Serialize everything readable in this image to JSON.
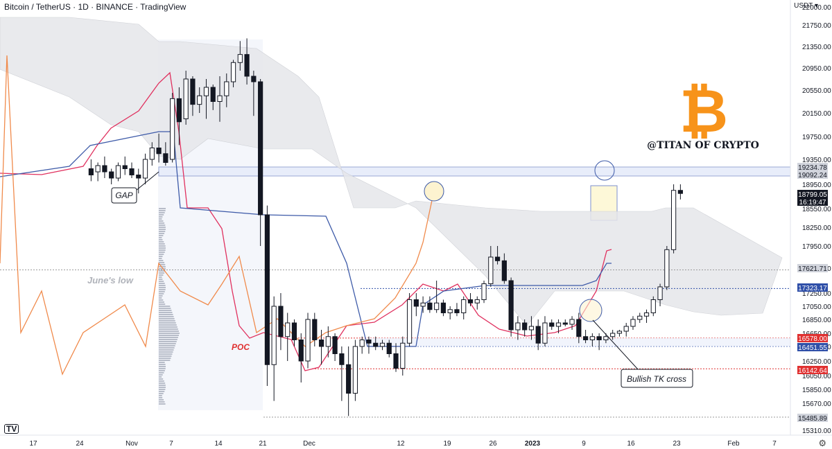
{
  "header": {
    "title": "Bitcoin / TetherUS · 1D · BINANCE · TradingView",
    "currency": "USDT",
    "logo_text": "TV"
  },
  "branding": {
    "text": "@TITAN OF CRYPTO",
    "symbol": "₿",
    "color": "#f7931a"
  },
  "colors": {
    "candle_up_body": "#ffffff",
    "candle_down_body": "#131722",
    "tenkan": "#e0305e",
    "kijun": "#3d5aa8",
    "chikou": "#f08a4b",
    "cloud": "#e6e7eb",
    "resistance_band": "#e8edfa",
    "annotation_circle": "#3d5aa8",
    "highlight_box": "#fdf8d8",
    "poc_text": "#e03030"
  },
  "annotations": {
    "gap": "GAP",
    "junes_low": "June's low",
    "poc": "POC",
    "bullish_tk_cross": "Bullish TK cross"
  },
  "chart_data": {
    "type": "candlestick",
    "title": "Bitcoin / TetherUS · 1D · BINANCE · TradingView",
    "y_axis_ticks": [
      22000,
      21750,
      21350,
      20950,
      20550,
      20150,
      19750,
      19350,
      18950,
      18550,
      18250,
      17950,
      17650,
      17250,
      17050,
      16850,
      16650,
      16450,
      16250,
      16050,
      15850,
      15670,
      15310
    ],
    "x_axis_ticks": [
      "17",
      "24",
      "Nov",
      "7",
      "14",
      "21",
      "Dec",
      "12",
      "19",
      "26",
      "2023",
      "9",
      "16",
      "23",
      "Feb",
      "7"
    ],
    "ylim": [
      15310,
      22000
    ],
    "price_labels": [
      {
        "value": "19234.78",
        "kind": "gray"
      },
      {
        "value": "19092.24",
        "kind": "gray"
      },
      {
        "value": "18799.05",
        "kind": "current"
      },
      {
        "value": "16:19:47",
        "kind": "countdown"
      },
      {
        "value": "17621.71",
        "kind": "gray"
      },
      {
        "value": "17323.17",
        "kind": "blue"
      },
      {
        "value": "16578.00",
        "kind": "red"
      },
      {
        "value": "16451.55",
        "kind": "blue"
      },
      {
        "value": "16142.64",
        "kind": "red"
      },
      {
        "value": "15485.89",
        "kind": "gray"
      }
    ],
    "ohlc": [
      [
        19200,
        19350,
        19000,
        19100
      ],
      [
        19150,
        19300,
        19000,
        19250
      ],
      [
        19250,
        19400,
        19050,
        19150
      ],
      [
        19150,
        19200,
        18950,
        19050
      ],
      [
        19050,
        19300,
        19000,
        19250
      ],
      [
        19250,
        19400,
        19100,
        19200
      ],
      [
        19200,
        19300,
        19050,
        19100
      ],
      [
        19100,
        19200,
        18800,
        19050
      ],
      [
        19050,
        19450,
        18950,
        19350
      ],
      [
        19350,
        19650,
        19250,
        19550
      ],
      [
        19550,
        19800,
        19300,
        19450
      ],
      [
        19450,
        19650,
        19250,
        19300
      ],
      [
        19350,
        20500,
        19300,
        20400
      ],
      [
        20400,
        20600,
        19600,
        20000
      ],
      [
        20050,
        20900,
        19950,
        20750
      ],
      [
        20750,
        20800,
        20100,
        20300
      ],
      [
        20300,
        20600,
        20150,
        20450
      ],
      [
        20450,
        20750,
        20050,
        20600
      ],
      [
        20600,
        20650,
        20200,
        20350
      ],
      [
        20350,
        20800,
        20000,
        20450
      ],
      [
        20450,
        20850,
        20250,
        20700
      ],
      [
        20700,
        21100,
        20600,
        21050
      ],
      [
        21050,
        21450,
        20900,
        21200
      ],
      [
        21200,
        21500,
        20650,
        20800
      ],
      [
        20800,
        20900,
        20100,
        20700
      ],
      [
        20700,
        20750,
        17950,
        18450
      ],
      [
        18450,
        18600,
        15900,
        16200
      ],
      [
        16200,
        17200,
        15700,
        17050
      ],
      [
        17050,
        17250,
        16400,
        16600
      ],
      [
        16600,
        16950,
        16250,
        16800
      ],
      [
        16800,
        16850,
        16450,
        16550
      ],
      [
        16550,
        16650,
        15950,
        16250
      ],
      [
        16250,
        16950,
        16150,
        16850
      ],
      [
        16850,
        16950,
        16450,
        16550
      ],
      [
        16550,
        16700,
        16200,
        16450
      ],
      [
        16450,
        16750,
        16300,
        16600
      ],
      [
        16600,
        16650,
        16250,
        16350
      ],
      [
        16350,
        16450,
        15700,
        16200
      ],
      [
        16200,
        16450,
        15500,
        15800
      ],
      [
        15800,
        16550,
        15700,
        16450
      ],
      [
        16450,
        16600,
        16350,
        16550
      ],
      [
        16550,
        16600,
        16350,
        16500
      ],
      [
        16500,
        16600,
        16400,
        16450
      ],
      [
        16450,
        16550,
        16400,
        16500
      ],
      [
        16500,
        16550,
        16300,
        16350
      ],
      [
        16350,
        16500,
        16100,
        16150
      ],
      [
        16150,
        16600,
        16050,
        16500
      ],
      [
        16500,
        17250,
        16450,
        17150
      ],
      [
        17150,
        17250,
        16900,
        17050
      ],
      [
        17050,
        17200,
        16950,
        17100
      ],
      [
        17100,
        17200,
        16950,
        17000
      ],
      [
        17000,
        17450,
        16950,
        17100
      ],
      [
        17100,
        17150,
        16900,
        16950
      ],
      [
        16950,
        17050,
        16850,
        17000
      ],
      [
        17000,
        17100,
        16900,
        16950
      ],
      [
        16950,
        17200,
        16850,
        17150
      ],
      [
        17150,
        17250,
        17050,
        17100
      ],
      [
        17100,
        17200,
        17000,
        17150
      ],
      [
        17150,
        17450,
        17100,
        17400
      ],
      [
        17400,
        17950,
        17350,
        17800
      ],
      [
        17800,
        17950,
        17700,
        17750
      ],
      [
        17750,
        17850,
        17400,
        17450
      ],
      [
        17450,
        17500,
        16600,
        16700
      ],
      [
        16700,
        16900,
        16550,
        16800
      ],
      [
        16800,
        16850,
        16600,
        16700
      ],
      [
        16700,
        16900,
        16550,
        16750
      ],
      [
        16750,
        16850,
        16400,
        16500
      ],
      [
        16500,
        16900,
        16450,
        16800
      ],
      [
        16800,
        16850,
        16700,
        16750
      ],
      [
        16750,
        16850,
        16650,
        16800
      ],
      [
        16800,
        16850,
        16750,
        16780
      ],
      [
        16780,
        16900,
        16700,
        16850
      ],
      [
        16850,
        16950,
        16500,
        16600
      ],
      [
        16600,
        16700,
        16500,
        16550
      ],
      [
        16550,
        16650,
        16450,
        16600
      ],
      [
        16600,
        16650,
        16400,
        16550
      ],
      [
        16550,
        16650,
        16500,
        16600
      ],
      [
        16600,
        16700,
        16550,
        16650
      ],
      [
        16650,
        16700,
        16600,
        16680
      ],
      [
        16680,
        16800,
        16600,
        16750
      ],
      [
        16750,
        16900,
        16700,
        16850
      ],
      [
        16850,
        16950,
        16800,
        16900
      ],
      [
        16900,
        17000,
        16800,
        16950
      ],
      [
        16950,
        17200,
        16900,
        17150
      ],
      [
        17150,
        17400,
        17050,
        17350
      ],
      [
        17350,
        17950,
        17300,
        17900
      ],
      [
        17900,
        18950,
        17850,
        18850
      ],
      [
        18850,
        18950,
        18700,
        18799
      ]
    ],
    "overlay_levels": [
      {
        "name": "resistance_band",
        "from": 19092.24,
        "to": 19234.78
      },
      {
        "name": "junes_low",
        "value": 17621.71
      },
      {
        "name": "kijun_level",
        "value": 17323.17
      },
      {
        "name": "poc",
        "value": 16578
      },
      {
        "name": "support",
        "value": 16451.55
      },
      {
        "name": "low",
        "value": 16142.64
      },
      {
        "name": "bottom",
        "value": 15485.89
      }
    ]
  }
}
